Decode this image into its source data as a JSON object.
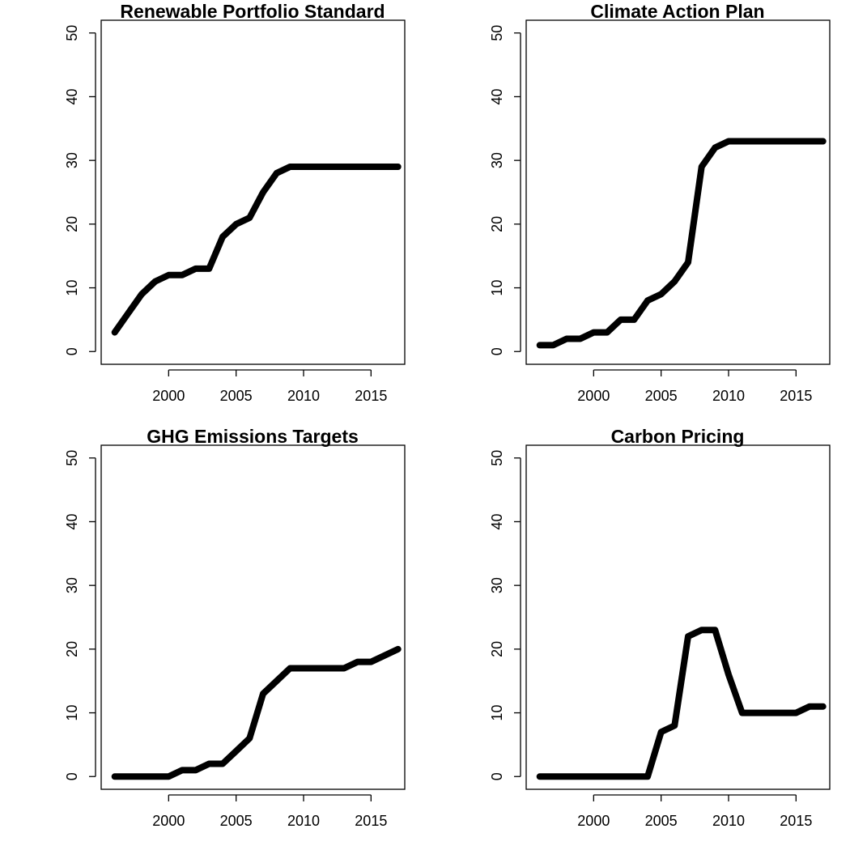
{
  "chart_data": [
    {
      "type": "line",
      "title": "Renewable Portfolio Standard",
      "xlabel": "",
      "ylabel": "",
      "x": [
        1996,
        1997,
        1998,
        1999,
        2000,
        2001,
        2002,
        2003,
        2004,
        2005,
        2006,
        2007,
        2008,
        2009,
        2010,
        2011,
        2012,
        2013,
        2014,
        2015,
        2016,
        2017
      ],
      "series": [
        {
          "values": [
            3,
            6,
            9,
            11,
            12,
            12,
            13,
            13,
            18,
            20,
            21,
            25,
            28,
            29,
            29,
            29,
            29,
            29,
            29,
            29,
            29,
            29
          ]
        }
      ],
      "xlim": [
        1995,
        2017.5
      ],
      "ylim": [
        -2,
        52
      ],
      "xticks": [
        2000,
        2005,
        2010,
        2015
      ],
      "xtick_labels": [
        "2000",
        "2005",
        "2010",
        "2015"
      ],
      "yticks": [
        0,
        10,
        20,
        30,
        40,
        50
      ],
      "ytick_labels": [
        "0",
        "10",
        "20",
        "30",
        "40",
        "50"
      ],
      "grid": false,
      "legend": "none"
    },
    {
      "type": "line",
      "title": "Climate Action Plan",
      "xlabel": "",
      "ylabel": "",
      "x": [
        1996,
        1997,
        1998,
        1999,
        2000,
        2001,
        2002,
        2003,
        2004,
        2005,
        2006,
        2007,
        2008,
        2009,
        2010,
        2011,
        2012,
        2013,
        2014,
        2015,
        2016,
        2017
      ],
      "series": [
        {
          "values": [
            1,
            1,
            2,
            2,
            3,
            3,
            5,
            5,
            8,
            9,
            11,
            14,
            29,
            32,
            33,
            33,
            33,
            33,
            33,
            33,
            33,
            33
          ]
        }
      ],
      "xlim": [
        1995,
        2017.5
      ],
      "ylim": [
        -2,
        52
      ],
      "xticks": [
        2000,
        2005,
        2010,
        2015
      ],
      "xtick_labels": [
        "2000",
        "2005",
        "2010",
        "2015"
      ],
      "yticks": [
        0,
        10,
        20,
        30,
        40,
        50
      ],
      "ytick_labels": [
        "0",
        "10",
        "20",
        "30",
        "40",
        "50"
      ],
      "grid": false,
      "legend": "none"
    },
    {
      "type": "line",
      "title": "GHG Emissions Targets",
      "xlabel": "",
      "ylabel": "",
      "x": [
        1996,
        1997,
        1998,
        1999,
        2000,
        2001,
        2002,
        2003,
        2004,
        2005,
        2006,
        2007,
        2008,
        2009,
        2010,
        2011,
        2012,
        2013,
        2014,
        2015,
        2016,
        2017
      ],
      "series": [
        {
          "values": [
            0,
            0,
            0,
            0,
            0,
            1,
            1,
            2,
            2,
            4,
            6,
            13,
            15,
            17,
            17,
            17,
            17,
            17,
            18,
            18,
            19,
            20
          ]
        }
      ],
      "xlim": [
        1995,
        2017.5
      ],
      "ylim": [
        -2,
        52
      ],
      "xticks": [
        2000,
        2005,
        2010,
        2015
      ],
      "xtick_labels": [
        "2000",
        "2005",
        "2010",
        "2015"
      ],
      "yticks": [
        0,
        10,
        20,
        30,
        40,
        50
      ],
      "ytick_labels": [
        "0",
        "10",
        "20",
        "30",
        "40",
        "50"
      ],
      "grid": false,
      "legend": "none"
    },
    {
      "type": "line",
      "title": "Carbon Pricing",
      "xlabel": "",
      "ylabel": "",
      "x": [
        1996,
        1997,
        1998,
        1999,
        2000,
        2001,
        2002,
        2003,
        2004,
        2005,
        2006,
        2007,
        2008,
        2009,
        2010,
        2011,
        2012,
        2013,
        2014,
        2015,
        2016,
        2017
      ],
      "series": [
        {
          "values": [
            0,
            0,
            0,
            0,
            0,
            0,
            0,
            0,
            0,
            7,
            8,
            22,
            23,
            23,
            16,
            10,
            10,
            10,
            10,
            10,
            11,
            11
          ]
        }
      ],
      "xlim": [
        1995,
        2017.5
      ],
      "ylim": [
        -2,
        52
      ],
      "xticks": [
        2000,
        2005,
        2010,
        2015
      ],
      "xtick_labels": [
        "2000",
        "2005",
        "2010",
        "2015"
      ],
      "yticks": [
        0,
        10,
        20,
        30,
        40,
        50
      ],
      "ytick_labels": [
        "0",
        "10",
        "20",
        "30",
        "40",
        "50"
      ],
      "grid": false,
      "legend": "none"
    }
  ],
  "colors": {
    "line": "#000000",
    "frame": "#000000",
    "background": "#ffffff"
  }
}
